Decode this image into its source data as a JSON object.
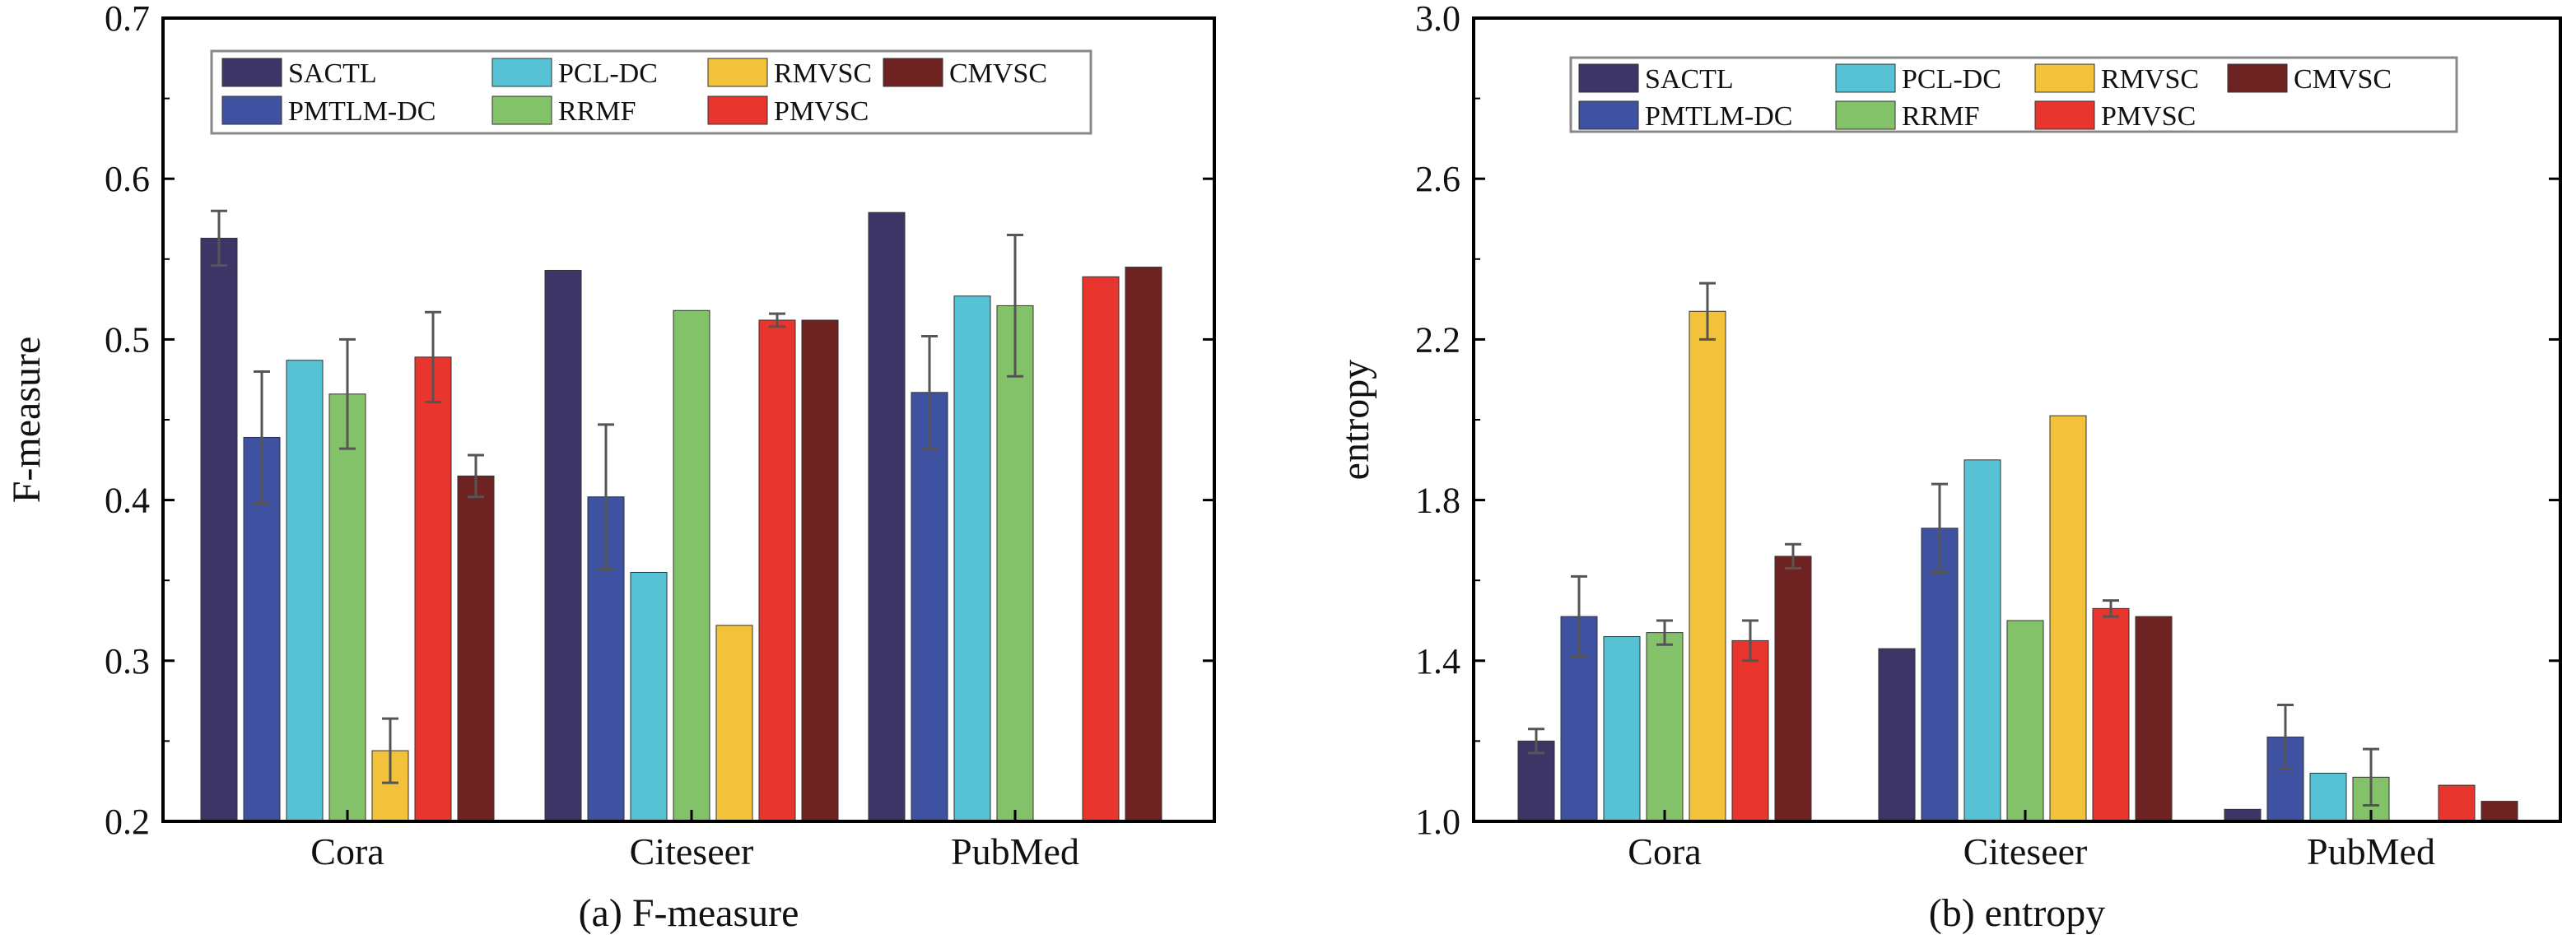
{
  "series_styles": [
    {
      "name": "SACTL",
      "color": "#3c3566"
    },
    {
      "name": "PMTLM-DC",
      "color": "#3f51a1"
    },
    {
      "name": "PCL-DC",
      "color": "#56c2d3"
    },
    {
      "name": "RRMF",
      "color": "#84c26a"
    },
    {
      "name": "RMVSC",
      "color": "#f2c23a"
    },
    {
      "name": "PMVSC",
      "color": "#e8352d"
    },
    {
      "name": "CMVSC",
      "color": "#6e2322"
    }
  ],
  "chart_data": [
    {
      "type": "bar",
      "caption": "(a) F-measure",
      "xlabel": "",
      "ylabel": "F-measure",
      "ylim": [
        0.2,
        0.7
      ],
      "yticks": [
        "0.2",
        "0.3",
        "0.4",
        "0.5",
        "0.6",
        "0.7"
      ],
      "grid": false,
      "legend": "top",
      "categories": [
        "Cora",
        "Citeseer",
        "PubMed"
      ],
      "series": [
        {
          "name": "SACTL",
          "values": [
            0.563,
            0.543,
            0.579
          ],
          "errors": [
            0.017,
            0,
            0
          ]
        },
        {
          "name": "PMTLM-DC",
          "values": [
            0.439,
            0.402,
            0.467
          ],
          "errors": [
            0.041,
            0.045,
            0.035
          ]
        },
        {
          "name": "PCL-DC",
          "values": [
            0.487,
            0.355,
            0.527
          ],
          "errors": [
            0,
            0,
            0
          ]
        },
        {
          "name": "RRMF",
          "values": [
            0.466,
            0.518,
            0.521
          ],
          "errors": [
            0.034,
            0,
            0.044
          ]
        },
        {
          "name": "RMVSC",
          "values": [
            0.244,
            0.322,
            null
          ],
          "errors": [
            0.02,
            0,
            0
          ]
        },
        {
          "name": "PMVSC",
          "values": [
            0.489,
            0.512,
            0.539
          ],
          "errors": [
            0.028,
            0.004,
            0
          ]
        },
        {
          "name": "CMVSC",
          "values": [
            0.415,
            0.512,
            0.545
          ],
          "errors": [
            0.013,
            0,
            0
          ]
        }
      ]
    },
    {
      "type": "bar",
      "caption": "(b) entropy",
      "xlabel": "",
      "ylabel": "entropy",
      "ylim": [
        1.0,
        3.0
      ],
      "yticks": [
        "1.0",
        "1.4",
        "1.8",
        "2.2",
        "2.6",
        "3.0"
      ],
      "grid": false,
      "legend": "top",
      "categories": [
        "Cora",
        "Citeseer",
        "PubMed"
      ],
      "series": [
        {
          "name": "SACTL",
          "values": [
            1.2,
            1.43,
            1.03
          ],
          "errors": [
            0.03,
            0,
            0
          ]
        },
        {
          "name": "PMTLM-DC",
          "values": [
            1.51,
            1.73,
            1.21
          ],
          "errors": [
            0.1,
            0.11,
            0.08
          ]
        },
        {
          "name": "PCL-DC",
          "values": [
            1.46,
            1.9,
            1.12
          ],
          "errors": [
            0,
            0,
            0
          ]
        },
        {
          "name": "RRMF",
          "values": [
            1.47,
            1.5,
            1.11
          ],
          "errors": [
            0.03,
            0,
            0.07
          ]
        },
        {
          "name": "RMVSC",
          "values": [
            2.27,
            2.01,
            null
          ],
          "errors": [
            0.07,
            0,
            0
          ]
        },
        {
          "name": "PMVSC",
          "values": [
            1.45,
            1.53,
            1.09
          ],
          "errors": [
            0.05,
            0.02,
            0
          ]
        },
        {
          "name": "CMVSC",
          "values": [
            1.66,
            1.51,
            1.05
          ],
          "errors": [
            0.03,
            0,
            0
          ]
        }
      ]
    }
  ]
}
